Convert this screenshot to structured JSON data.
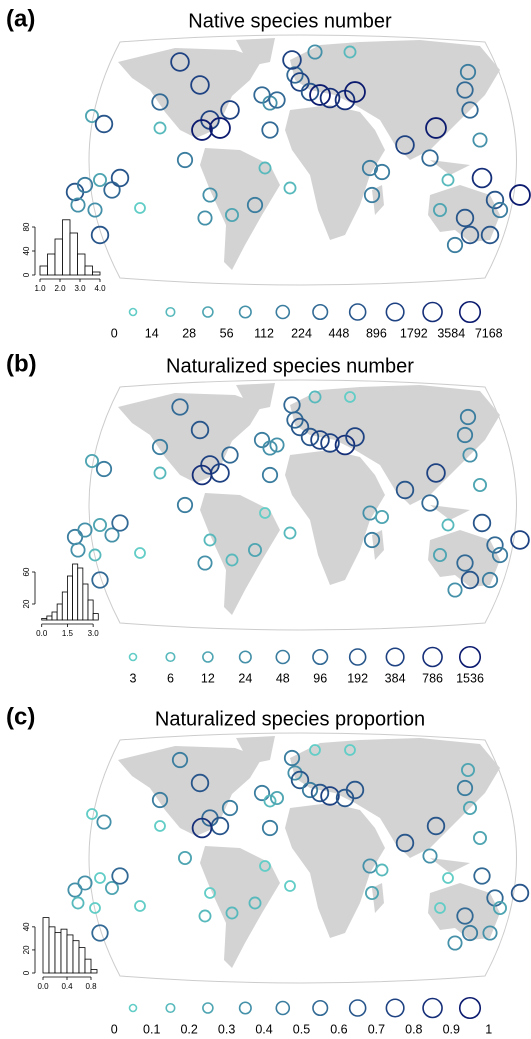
{
  "panels": [
    {
      "label": "(a)",
      "title": "Native species number",
      "color_range": [
        "#62cdc6",
        "#0b1a6e"
      ],
      "legend": [
        0,
        14,
        28,
        56,
        112,
        224,
        448,
        896,
        1792,
        3584,
        7168
      ],
      "histogram": {
        "bins": [
          1.0,
          1.375,
          1.75,
          2.125,
          2.5,
          2.875,
          3.25,
          3.625,
          4.0
        ],
        "counts": [
          15,
          35,
          60,
          92,
          70,
          35,
          15,
          5
        ],
        "xlim": [
          1.0,
          4.0
        ],
        "xticks": [
          {
            "value": 1,
            "label": "1.0"
          },
          {
            "value": 2,
            "label": "2.0"
          },
          {
            "value": 3,
            "label": "3.0"
          },
          {
            "value": 4,
            "label": "4.0"
          }
        ],
        "ylim": [
          0,
          100
        ],
        "yticks": [
          0,
          40,
          80
        ]
      }
    },
    {
      "label": "(b)",
      "title": "Naturalized species number",
      "color_range": [
        "#62cdc6",
        "#0b1a6e"
      ],
      "legend": [
        3,
        6,
        12,
        24,
        48,
        96,
        192,
        384,
        786,
        1536
      ],
      "histogram": {
        "bins": [
          0.0,
          0.3,
          0.6,
          0.9,
          1.2,
          1.5,
          1.8,
          2.1,
          2.4,
          2.7,
          3.0,
          3.3
        ],
        "counts": [
          2,
          5,
          10,
          20,
          35,
          55,
          70,
          65,
          45,
          25,
          8
        ],
        "xlim": [
          -0.1,
          3.4
        ],
        "xticks": [
          {
            "value": 0,
            "label": "0.0"
          },
          {
            "value": 1.5,
            "label": "1.5"
          },
          {
            "value": 3,
            "label": "3.0"
          }
        ],
        "ylim": [
          0,
          75
        ],
        "yticks": [
          20,
          60
        ]
      }
    },
    {
      "label": "(c)",
      "title": "Naturalized species proportion",
      "color_range": [
        "#62cdc6",
        "#0b1a6e"
      ],
      "legend": [
        0,
        0.1,
        0.2,
        0.3,
        0.4,
        0.5,
        0.6,
        0.7,
        0.8,
        0.9,
        1
      ],
      "histogram": {
        "bins": [
          0.0,
          0.1,
          0.2,
          0.3,
          0.4,
          0.5,
          0.6,
          0.7,
          0.8,
          0.9
        ],
        "counts": [
          48,
          40,
          35,
          38,
          33,
          28,
          22,
          12,
          3
        ],
        "xlim": [
          -0.05,
          0.95
        ],
        "xticks": [
          {
            "value": 0,
            "label": "0.0"
          },
          {
            "value": 0.4,
            "label": "0.4"
          },
          {
            "value": 0.8,
            "label": "0.8"
          }
        ],
        "ylim": [
          0,
          52
        ],
        "yticks": [
          0,
          20,
          40
        ]
      }
    }
  ]
}
